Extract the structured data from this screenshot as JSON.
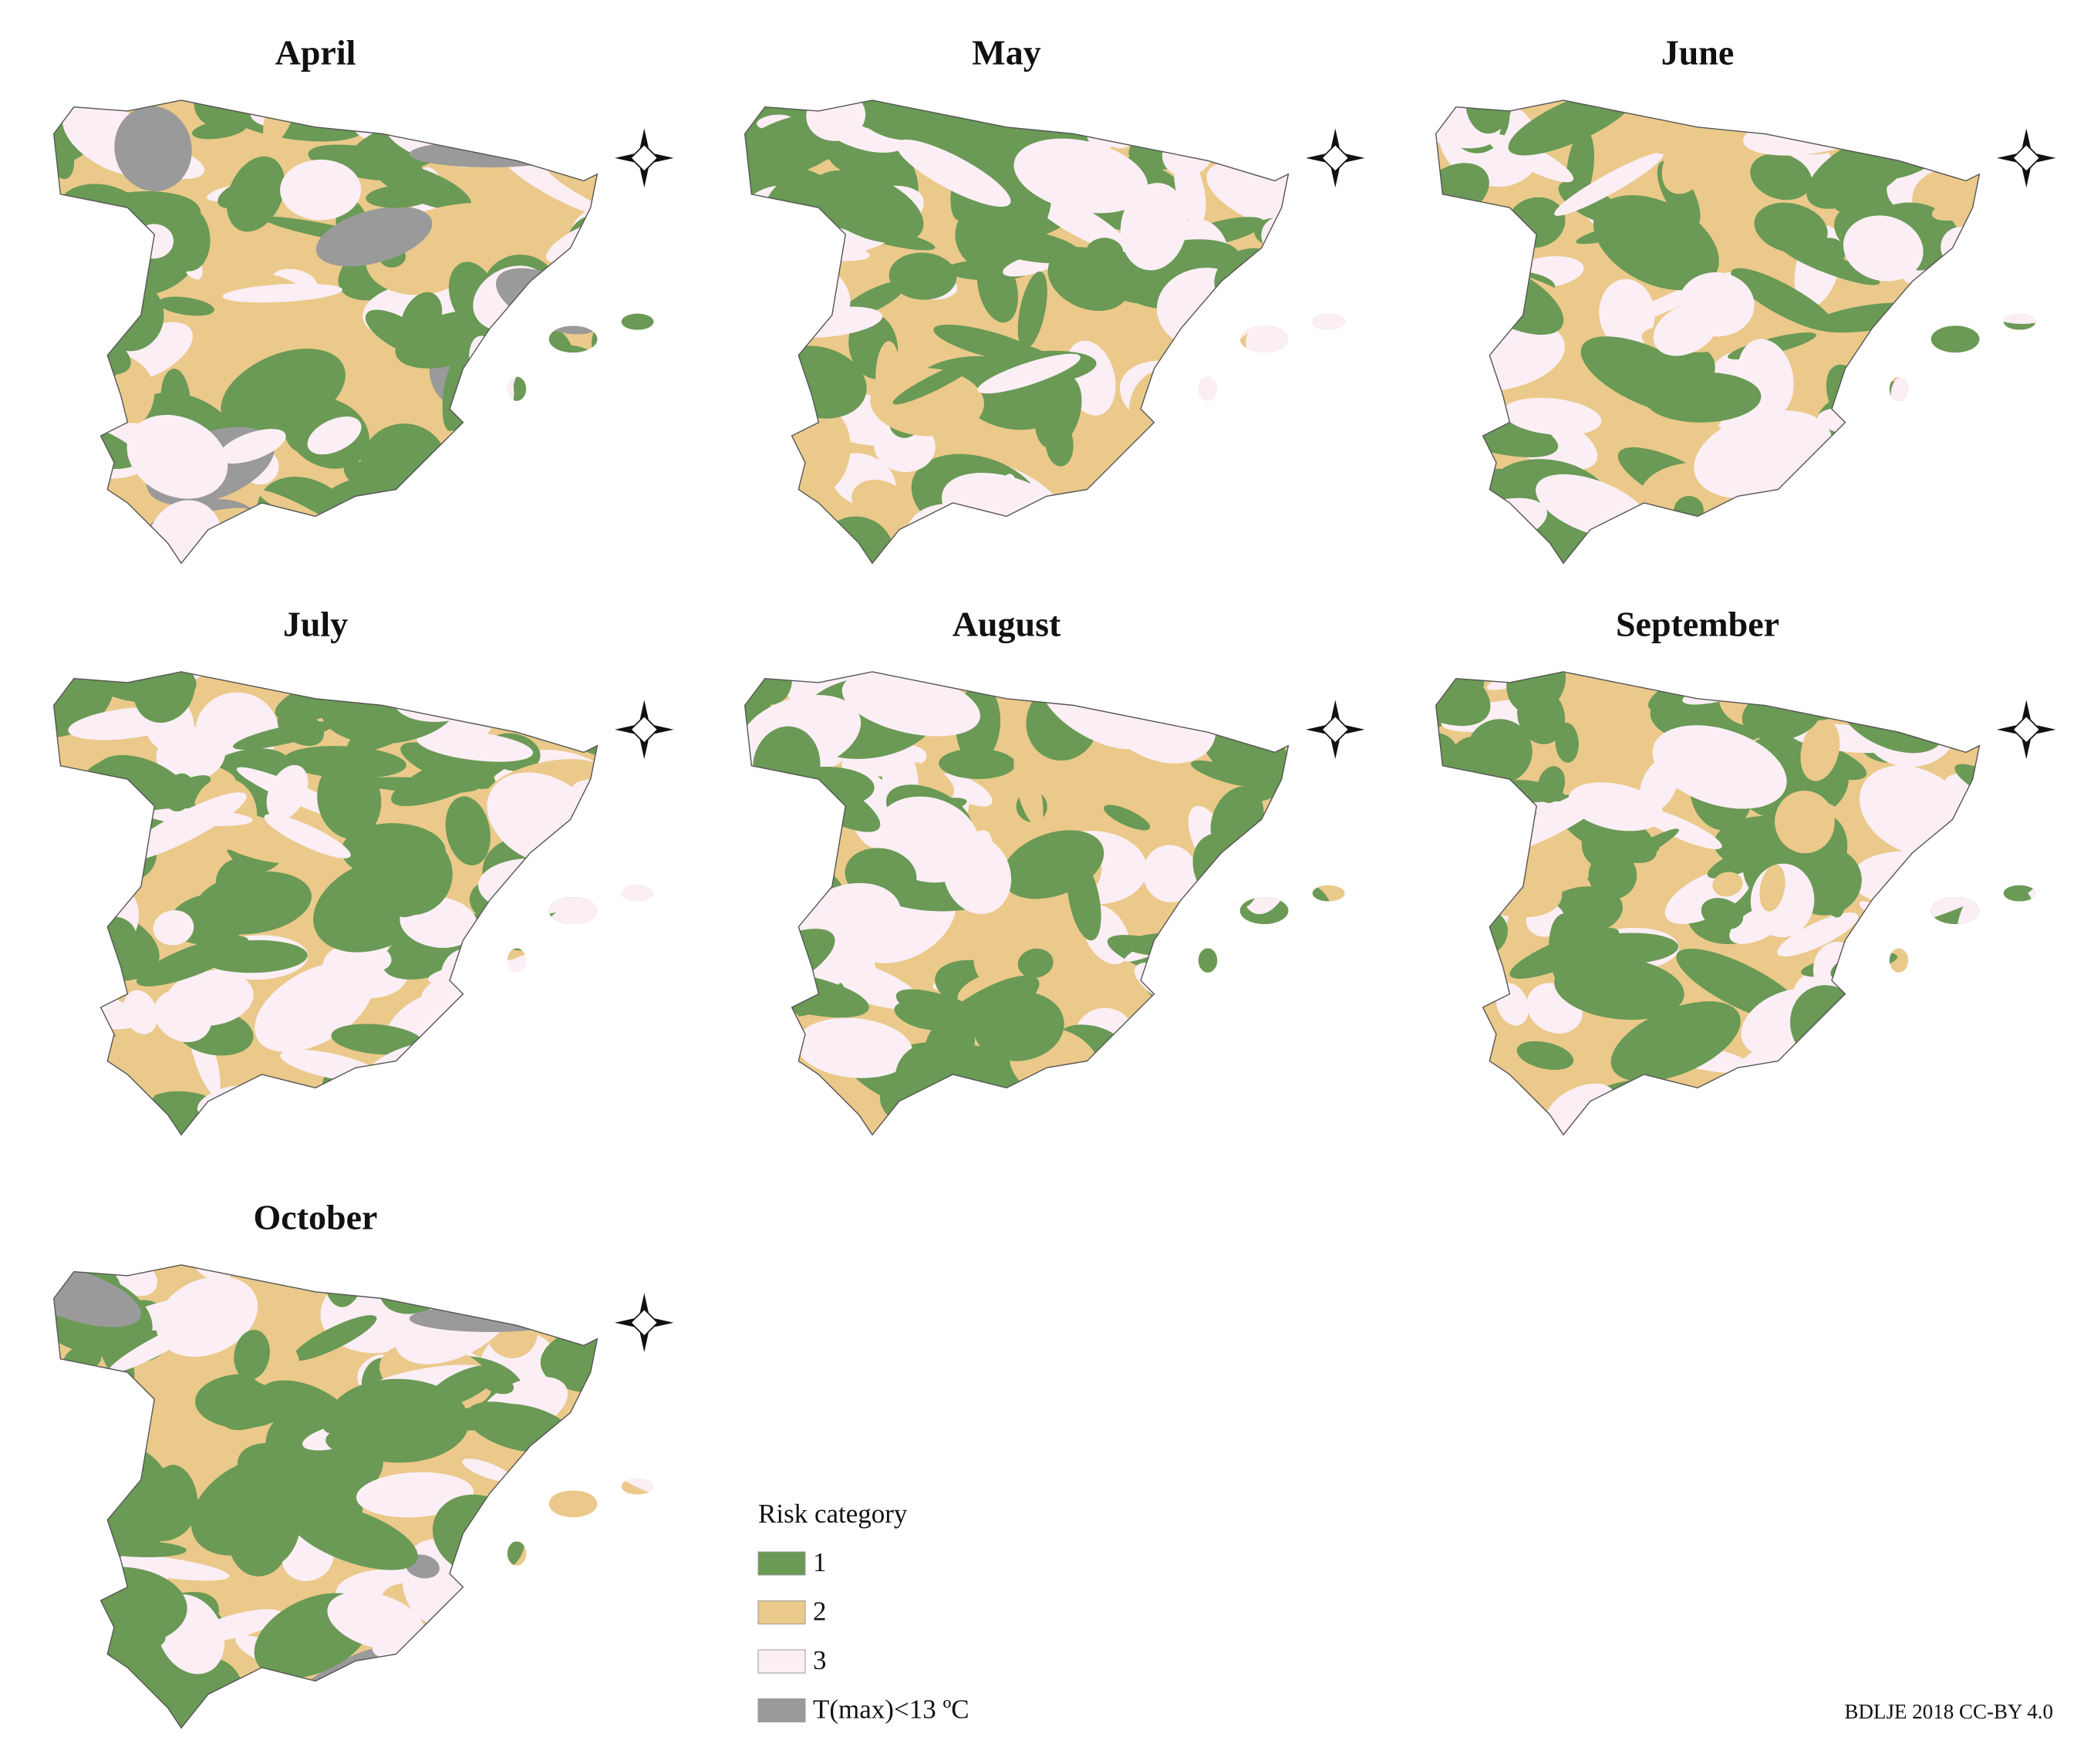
{
  "maps": [
    {
      "title": "April"
    },
    {
      "title": "May"
    },
    {
      "title": "June"
    },
    {
      "title": "July"
    },
    {
      "title": "August"
    },
    {
      "title": "September"
    },
    {
      "title": "October"
    }
  ],
  "legend": {
    "title": "Risk category",
    "items": [
      {
        "label": "1",
        "color": "#6a9a55"
      },
      {
        "label": "2",
        "color": "#eac98a"
      },
      {
        "label": "3",
        "color": "#fbeef5"
      },
      {
        "label": "T(max)<13 ºC",
        "color": "#9a9a9a"
      }
    ]
  },
  "credit": "BDLJE 2018 CC-BY 4.0"
}
